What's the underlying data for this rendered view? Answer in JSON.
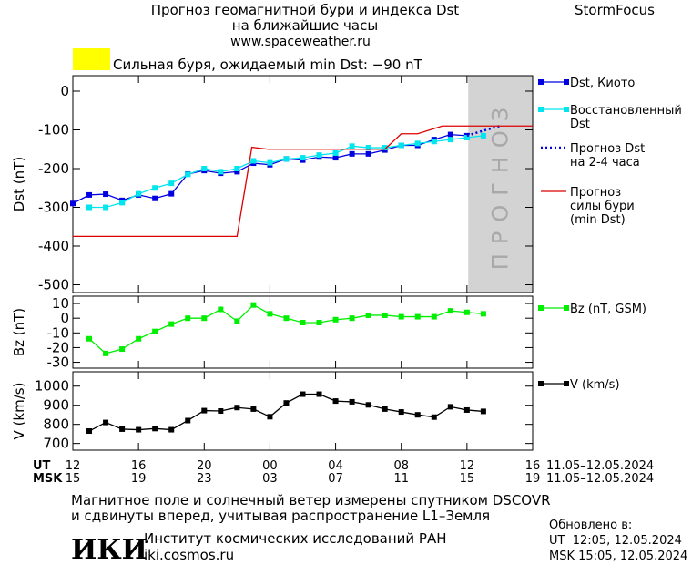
{
  "header": {
    "title": "Прогноз геомагнитной бури и индекса Dst",
    "subtitle": "на ближайшие часы",
    "url": "www.spaceweather.ru",
    "brand": "StormFocus",
    "alert": "Сильная буря, ожидаемый min Dst: −90 nT",
    "alert_color": "#ffff00"
  },
  "time_axis": {
    "rows": [
      {
        "label": "UT",
        "period": "11.05–12.05.2024",
        "ticks": [
          {
            "value": 0,
            "label": "12"
          },
          {
            "value": 4,
            "label": "16"
          },
          {
            "value": 8,
            "label": "20"
          },
          {
            "value": 12,
            "label": "00"
          },
          {
            "value": 16,
            "label": "04"
          },
          {
            "value": 20,
            "label": "08"
          },
          {
            "value": 24,
            "label": "12"
          },
          {
            "value": 28,
            "label": "16"
          }
        ]
      },
      {
        "label": "MSK",
        "period": "11.05–12.05.2024",
        "ticks": [
          {
            "value": 0,
            "label": "15"
          },
          {
            "value": 4,
            "label": "19"
          },
          {
            "value": 8,
            "label": "23"
          },
          {
            "value": 12,
            "label": "03"
          },
          {
            "value": 16,
            "label": "07"
          },
          {
            "value": 20,
            "label": "11"
          },
          {
            "value": 24,
            "label": "15"
          },
          {
            "value": 28,
            "label": "19"
          }
        ]
      }
    ]
  },
  "chart_data": [
    {
      "type": "line",
      "ylabel": "Dst (nT)",
      "xlim": [
        0,
        28
      ],
      "ylim": [
        -520,
        40
      ],
      "yticks": [
        0,
        -100,
        -200,
        -300,
        -400,
        -500
      ],
      "forecast_span": [
        24.08,
        28
      ],
      "forecast_label": "ПРОГНОЗ",
      "series": [
        {
          "name": "Dst, Киото",
          "color": "#0000e0",
          "marker": "square",
          "line": "solid",
          "x": [
            0,
            1,
            2,
            3,
            4,
            5,
            6,
            7,
            8,
            9,
            10,
            11,
            12,
            13,
            14,
            15,
            16,
            17,
            18,
            19,
            20,
            21,
            22,
            23,
            24
          ],
          "values": [
            -290,
            -268,
            -266,
            -282,
            -268,
            -277,
            -265,
            -214,
            -205,
            -212,
            -208,
            -186,
            -190,
            -175,
            -178,
            -170,
            -172,
            -162,
            -162,
            -152,
            -140,
            -140,
            -125,
            -112,
            -115
          ]
        },
        {
          "name": "Восстановленный\nDst",
          "color": "#00e5ee",
          "marker": "square",
          "line": "solid",
          "x": [
            1,
            2,
            3,
            4,
            5,
            6,
            7,
            8,
            9,
            10,
            11,
            12,
            13,
            14,
            15,
            16,
            17,
            18,
            19,
            20,
            21,
            22,
            23,
            24,
            25
          ],
          "values": [
            -300,
            -300,
            -288,
            -265,
            -250,
            -238,
            -215,
            -200,
            -208,
            -200,
            -180,
            -185,
            -175,
            -172,
            -165,
            -160,
            -142,
            -146,
            -146,
            -140,
            -135,
            -130,
            -125,
            -120,
            -115
          ]
        },
        {
          "name": "Прогноз Dst\nна 2-4 часа",
          "color": "#0000e0",
          "marker": "none",
          "line": "dotted",
          "x": [
            24,
            25,
            26
          ],
          "values": [
            -115,
            -102,
            -90
          ]
        },
        {
          "name": "Прогноз\nсилы бури\n(min Dst)",
          "color": "#dd0000",
          "marker": "none",
          "line": "solid",
          "x": [
            0,
            10,
            10.9,
            11.9,
            19,
            20,
            21,
            22.5,
            23.5,
            28
          ],
          "values": [
            -375,
            -375,
            -145,
            -150,
            -150,
            -110,
            -110,
            -90,
            -90,
            -90
          ]
        }
      ]
    },
    {
      "type": "line",
      "ylabel": "Bz (nT)",
      "xlim": [
        0,
        28
      ],
      "ylim": [
        -34,
        15
      ],
      "yticks": [
        10,
        0,
        -10,
        -20,
        -30
      ],
      "series": [
        {
          "name": "Bz (nT, GSM)",
          "color": "#00ee00",
          "marker": "square",
          "line": "solid",
          "x": [
            1,
            2,
            3,
            4,
            5,
            6,
            7,
            8,
            9,
            10,
            11,
            12,
            13,
            14,
            15,
            16,
            17,
            18,
            19,
            20,
            21,
            22,
            23,
            24,
            25
          ],
          "values": [
            -14,
            -24,
            -21,
            -14,
            -9,
            -4,
            0,
            0,
            6,
            -2,
            9,
            3,
            0,
            -3,
            -3,
            -1,
            0,
            2,
            2,
            1,
            1,
            1,
            5,
            4,
            3
          ]
        }
      ]
    },
    {
      "type": "line",
      "ylabel": "V (km/s)",
      "xlim": [
        0,
        28
      ],
      "ylim": [
        665,
        1075
      ],
      "yticks": [
        1000,
        900,
        800,
        700
      ],
      "series": [
        {
          "name": "V (km/s)",
          "color": "#000000",
          "marker": "square",
          "line": "solid",
          "x": [
            1,
            2,
            3,
            4,
            5,
            6,
            7,
            8,
            9,
            10,
            11,
            12,
            13,
            14,
            15,
            16,
            17,
            18,
            19,
            20,
            21,
            22,
            23,
            24,
            25
          ],
          "values": [
            765,
            810,
            775,
            772,
            778,
            772,
            820,
            872,
            870,
            888,
            880,
            840,
            912,
            958,
            958,
            922,
            918,
            902,
            880,
            865,
            850,
            838,
            892,
            875,
            868
          ]
        }
      ]
    }
  ],
  "footer": {
    "note_1": "Магнитное поле и солнечный ветер измерены спутником DSCOVR",
    "note_2": "и сдвинуты вперед, учитывая распространение L1–Земля",
    "logo": "ИКИ",
    "institute": "Институт космических исследований РАН",
    "site": "iki.cosmos.ru",
    "updated": "Обновлено в:",
    "updated_ut": "UT  12:05, 12.05.2024",
    "updated_msk": "MSK 15:05, 12.05.2024"
  }
}
